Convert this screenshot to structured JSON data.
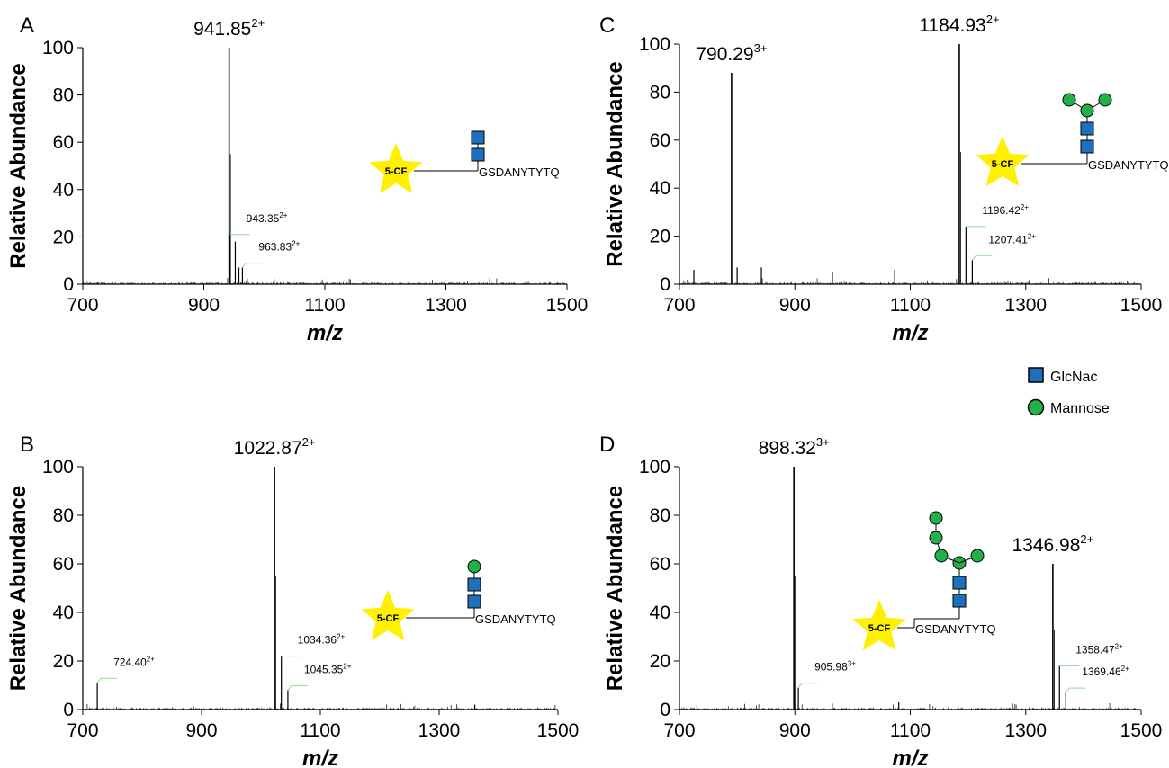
{
  "figure_colors": {
    "glcnac": "#1f6fbf",
    "mannose": "#22b04a",
    "star": "#ffef00",
    "callout_line": "#8fd98f",
    "trace": "#000000"
  },
  "legend": {
    "glcnac_label": "GlcNac",
    "mannose_label": "Mannose"
  },
  "chart_data": [
    {
      "panel": "A",
      "type": "line",
      "xlabel": "m/z",
      "ylabel": "Relative Abundance",
      "xlim": [
        700,
        1500
      ],
      "ylim": [
        0,
        100
      ],
      "xticks": [
        700,
        900,
        1100,
        1300,
        1500
      ],
      "yticks": [
        0,
        20,
        40,
        60,
        80,
        100
      ],
      "peaks": [
        {
          "x": 941.85,
          "y": 100,
          "label": "941.85",
          "charge": "2+",
          "major": true
        },
        {
          "x": 943.35,
          "y": 21,
          "label": "943.35",
          "charge": "2+",
          "major": false
        },
        {
          "x": 952.0,
          "y": 18,
          "label": "",
          "charge": "",
          "major": false
        },
        {
          "x": 963.83,
          "y": 7,
          "label": "963.83",
          "charge": "2+",
          "major": false
        },
        {
          "x": 958.0,
          "y": 7,
          "label": "",
          "charge": "",
          "major": false
        }
      ],
      "glycan": "GlcNac-GlcNac",
      "peptide": "GSDANYTYTQ",
      "tag": "5-CF"
    },
    {
      "panel": "B",
      "type": "line",
      "xlabel": "m/z",
      "ylabel": "Relative Abundance",
      "xlim": [
        700,
        1500
      ],
      "ylim": [
        0,
        100
      ],
      "xticks": [
        700,
        900,
        1100,
        1300,
        1500
      ],
      "yticks": [
        0,
        20,
        40,
        60,
        80,
        100
      ],
      "peaks": [
        {
          "x": 1022.87,
          "y": 100,
          "label": "1022.87",
          "charge": "2+",
          "major": true
        },
        {
          "x": 724.4,
          "y": 11,
          "label": "724.40",
          "charge": "2+",
          "major": false
        },
        {
          "x": 1034.36,
          "y": 22,
          "label": "1034.36",
          "charge": "2+",
          "major": false
        },
        {
          "x": 1045.35,
          "y": 8,
          "label": "1045.35",
          "charge": "2+",
          "major": false
        },
        {
          "x": 1360.0,
          "y": 2,
          "label": "",
          "charge": "",
          "major": false
        }
      ],
      "glycan": "Mannose-GlcNac-GlcNac",
      "peptide": "GSDANYTYTQ",
      "tag": "5-CF"
    },
    {
      "panel": "C",
      "type": "line",
      "xlabel": "m/z",
      "ylabel": "Relative Abundance",
      "xlim": [
        700,
        1500
      ],
      "ylim": [
        0,
        100
      ],
      "xticks": [
        700,
        900,
        1100,
        1300,
        1500
      ],
      "yticks": [
        0,
        20,
        40,
        60,
        80,
        100
      ],
      "peaks": [
        {
          "x": 1184.93,
          "y": 100,
          "label": "1184.93",
          "charge": "2+",
          "major": true
        },
        {
          "x": 790.29,
          "y": 88,
          "label": "790.29",
          "charge": "3+",
          "major": true
        },
        {
          "x": 1196.42,
          "y": 24,
          "label": "1196.42",
          "charge": "2+",
          "major": false
        },
        {
          "x": 1207.41,
          "y": 10,
          "label": "1207.41",
          "charge": "2+",
          "major": false
        },
        {
          "x": 800.0,
          "y": 7,
          "label": "",
          "charge": "",
          "major": false
        },
        {
          "x": 842.0,
          "y": 7,
          "label": "",
          "charge": "",
          "major": false
        },
        {
          "x": 1073.0,
          "y": 6,
          "label": "",
          "charge": "",
          "major": false
        },
        {
          "x": 965.0,
          "y": 5,
          "label": "",
          "charge": "",
          "major": false
        },
        {
          "x": 725.0,
          "y": 6,
          "label": "",
          "charge": "",
          "major": false
        }
      ],
      "glycan": "Mannose3-GlcNac2",
      "peptide": "GSDANYTYTQ",
      "tag": "5-CF"
    },
    {
      "panel": "D",
      "type": "line",
      "xlabel": "m/z",
      "ylabel": "Relative Abundance",
      "xlim": [
        700,
        1500
      ],
      "ylim": [
        0,
        100
      ],
      "xticks": [
        700,
        900,
        1100,
        1300,
        1500
      ],
      "yticks": [
        0,
        20,
        40,
        60,
        80,
        100
      ],
      "peaks": [
        {
          "x": 898.32,
          "y": 100,
          "label": "898.32",
          "charge": "3+",
          "major": true
        },
        {
          "x": 1346.98,
          "y": 60,
          "label": "1346.98",
          "charge": "2+",
          "major": true
        },
        {
          "x": 905.98,
          "y": 9,
          "label": "905.98",
          "charge": "3+",
          "major": false
        },
        {
          "x": 1358.47,
          "y": 18,
          "label": "1358.47",
          "charge": "2+",
          "major": false
        },
        {
          "x": 1369.46,
          "y": 7,
          "label": "1369.46",
          "charge": "2+",
          "major": false
        },
        {
          "x": 1080.0,
          "y": 3,
          "label": "",
          "charge": "",
          "major": false
        }
      ],
      "glycan": "Mannose5-GlcNac2",
      "peptide": "GSDANYTYTQ",
      "tag": "5-CF"
    }
  ]
}
